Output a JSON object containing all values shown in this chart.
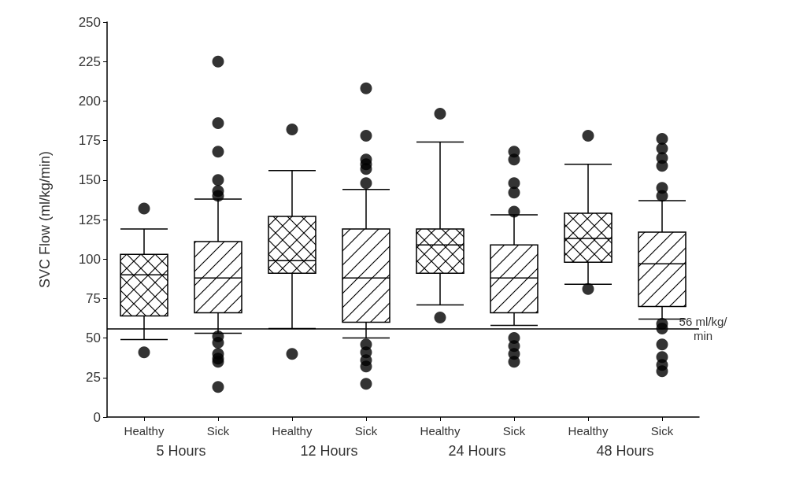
{
  "chart_data": {
    "type": "box",
    "ylabel": "SVC Flow (ml/kg/min)",
    "categories": [
      "Healthy",
      "Sick",
      "Healthy",
      "Sick",
      "Healthy",
      "Sick",
      "Healthy",
      "Sick"
    ],
    "annotations": [
      "5 Hours",
      "12 Hours",
      "24 Hours",
      "48 Hours"
    ],
    "color": "#000000",
    "boxes": [
      {
        "low": 49,
        "q1": 64,
        "median": 90,
        "q3": 103,
        "high": 119,
        "outliers": [
          132,
          41
        ]
      },
      {
        "low": 53,
        "q1": 66,
        "median": 88,
        "q3": 111,
        "high": 138,
        "outliers": [
          225,
          186,
          168,
          150,
          143,
          140,
          51,
          47,
          40,
          37,
          35,
          19
        ]
      },
      {
        "low": 56,
        "q1": 91,
        "median": 99,
        "q3": 127,
        "high": 156,
        "outliers": [
          182,
          40
        ]
      },
      {
        "low": 50,
        "q1": 60,
        "median": 88,
        "q3": 119,
        "high": 144,
        "outliers": [
          208,
          178,
          163,
          160,
          157,
          148,
          46,
          41,
          36,
          32,
          21
        ]
      },
      {
        "low": 71,
        "q1": 91,
        "median": 109,
        "q3": 119,
        "high": 174,
        "outliers": [
          192,
          63
        ]
      },
      {
        "low": 58,
        "q1": 66,
        "median": 88,
        "q3": 109,
        "high": 128,
        "outliers": [
          168,
          163,
          148,
          142,
          130,
          50,
          45,
          40,
          35
        ]
      },
      {
        "low": 84,
        "q1": 98,
        "median": 113,
        "q3": 129,
        "high": 160,
        "outliers": [
          178,
          81
        ]
      },
      {
        "low": 62,
        "q1": 70,
        "median": 97,
        "q3": 117,
        "high": 137,
        "outliers": [
          176,
          170,
          164,
          159,
          145,
          140,
          59,
          56,
          46,
          38,
          33,
          29
        ]
      }
    ],
    "ylim": [
      0,
      250
    ],
    "yticks": [
      0,
      25,
      50,
      75,
      100,
      125,
      150,
      175,
      200,
      225,
      250
    ],
    "ref_lines": [
      {
        "axis": "y",
        "value": 56,
        "label": "56 ml/kg/min"
      }
    ],
    "grid": false
  }
}
